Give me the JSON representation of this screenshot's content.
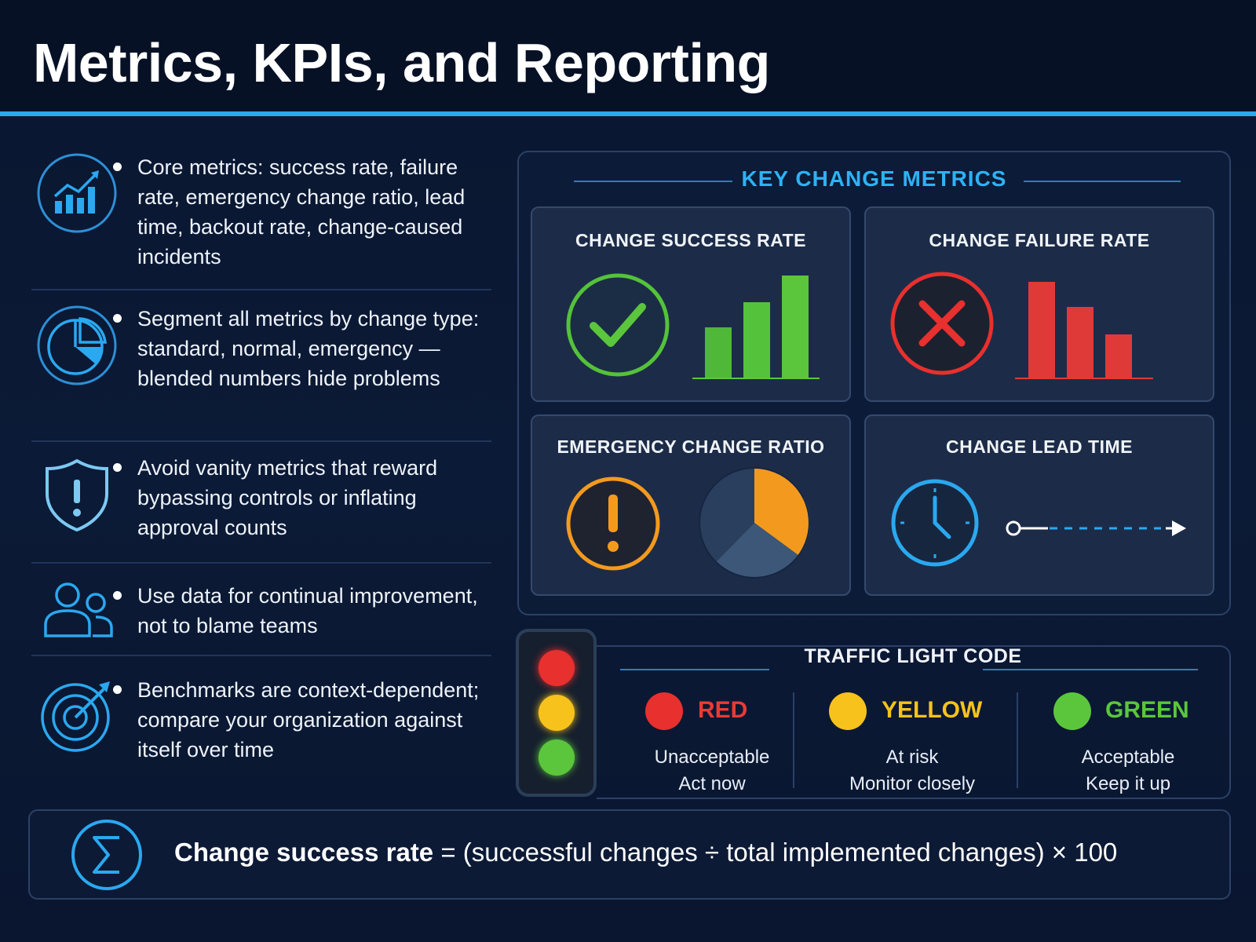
{
  "header": {
    "title": "Metrics, KPIs, and Reporting"
  },
  "points": [
    {
      "icon": "trend-chart-icon",
      "text": "Core metrics: success rate, failure rate, emergency change ratio, lead time, backout rate, change-caused incidents"
    },
    {
      "icon": "pie-chart-icon",
      "text": "Segment all metrics by change type: standard, normal, emergency — blended numbers hide problems"
    },
    {
      "icon": "shield-alert-icon",
      "text": "Avoid vanity metrics that reward bypassing controls or inflating approval counts"
    },
    {
      "icon": "users-icon",
      "text": "Use data for continual improvement, not to blame teams"
    },
    {
      "icon": "target-icon",
      "text": "Benchmarks are context-dependent; compare your organization against itself over time"
    }
  ],
  "metrics_panel": {
    "title": "KEY CHANGE  METRICS",
    "cards": [
      {
        "title": "CHANGE  SUCCESS RATE",
        "icon": "checkmark-circle-icon"
      },
      {
        "title": "CHANGE FAILURE RATE",
        "icon": "x-circle-icon"
      },
      {
        "title": "EMERGENCY CHANGE RATIO",
        "icon": "exclamation-circle-icon"
      },
      {
        "title": "CHANGE LEAD TIME",
        "icon": "clock-icon"
      }
    ]
  },
  "traffic_light": {
    "title": "TRAFFIC  LIGHT  CODE",
    "items": [
      {
        "name": "RED",
        "line1": "Unacceptable",
        "line2": "Act now",
        "color": "#e8302e"
      },
      {
        "name": "YELLOW",
        "line1": "At risk",
        "line2": "Monitor closely",
        "color": "#f7c21c"
      },
      {
        "name": "GREEN",
        "line1": "Acceptable",
        "line2": "Keep it up",
        "color": "#5bc63c"
      }
    ]
  },
  "formula": {
    "icon": "sigma-icon",
    "label": "Change success rate",
    "expression": " = (successful changes ÷ total implemented changes) × 100"
  },
  "colors": {
    "accent": "#2aa8f0",
    "success": "#5bc63c",
    "failure": "#e8302e",
    "warning": "#f39a1e"
  }
}
